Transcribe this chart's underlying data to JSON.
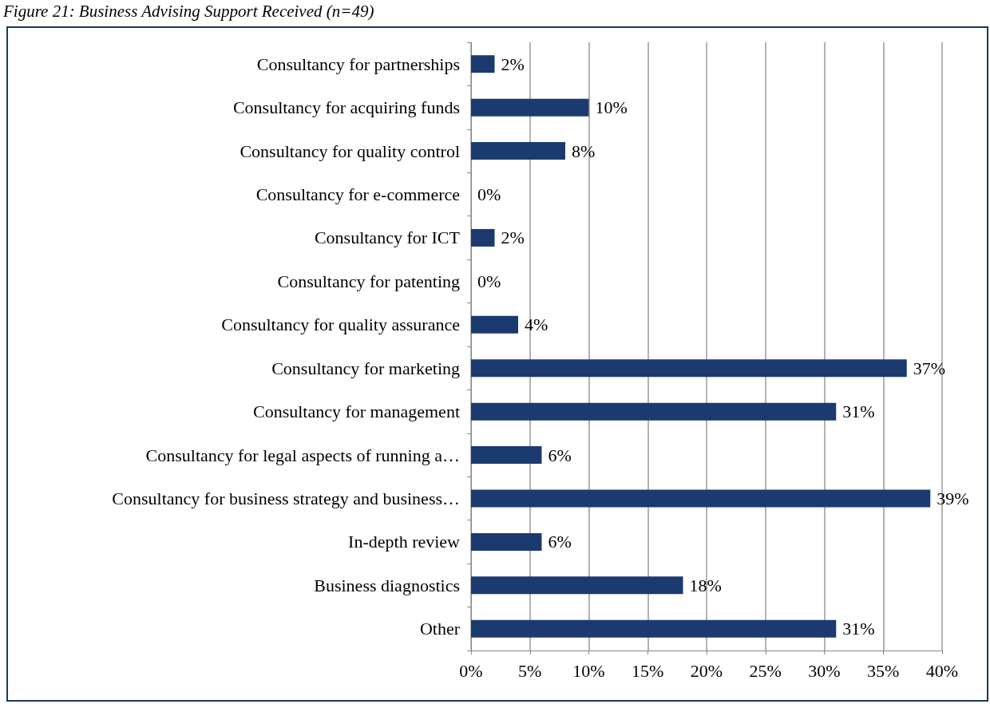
{
  "chart_data": {
    "type": "bar",
    "orientation": "horizontal",
    "title": "Figure 21: Business Advising Support Received (n=49)",
    "categories": [
      "Consultancy for partnerships",
      "Consultancy for acquiring funds",
      "Consultancy for quality control",
      "Consultancy for e-commerce",
      "Consultancy for ICT",
      "Consultancy for patenting",
      "Consultancy for quality assurance",
      "Consultancy for marketing",
      "Consultancy for management",
      "Consultancy for legal aspects of running a…",
      "Consultancy for business strategy and business…",
      "In-depth review",
      "Business diagnostics",
      "Other"
    ],
    "values": [
      2,
      10,
      8,
      0,
      2,
      0,
      4,
      37,
      31,
      6,
      39,
      6,
      18,
      31
    ],
    "value_labels": [
      "2%",
      "10%",
      "8%",
      "0%",
      "2%",
      "0%",
      "4%",
      "37%",
      "31%",
      "6%",
      "39%",
      "6%",
      "18%",
      "31%"
    ],
    "color": "#1b3a6f",
    "xlim": [
      0,
      40
    ],
    "xticks": [
      {
        "value": 0,
        "label": "0%"
      },
      {
        "value": 5,
        "label": "5%"
      },
      {
        "value": 10,
        "label": "10%"
      },
      {
        "value": 15,
        "label": "15%"
      },
      {
        "value": 20,
        "label": "20%"
      },
      {
        "value": 25,
        "label": "25%"
      },
      {
        "value": 30,
        "label": "30%"
      },
      {
        "value": 35,
        "label": "35%"
      },
      {
        "value": 40,
        "label": "40%"
      }
    ],
    "grid": "x"
  }
}
